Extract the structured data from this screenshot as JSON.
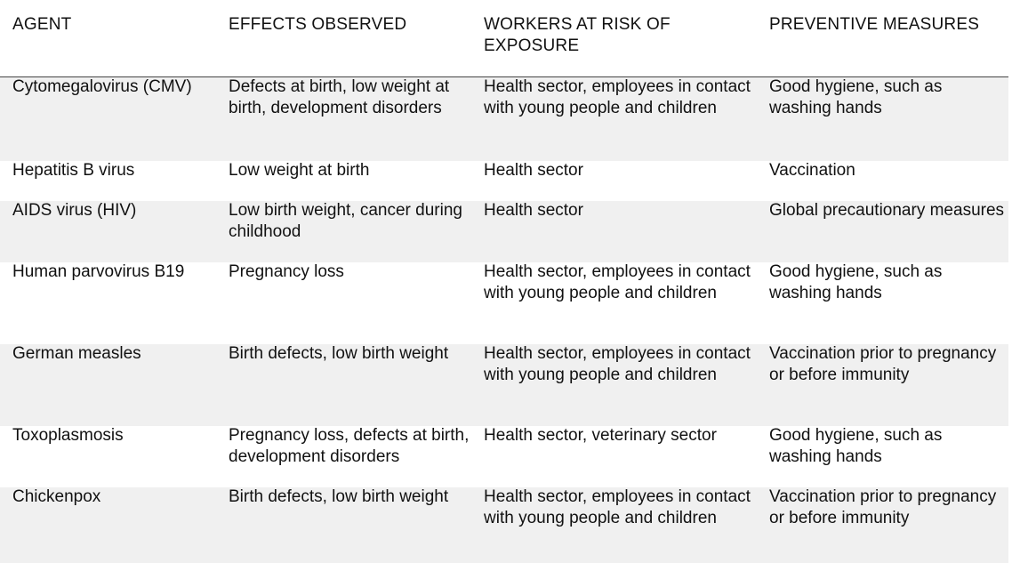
{
  "table": {
    "headers": {
      "agent": "AGENT",
      "effects": "EFFECTS OBSERVED",
      "workers": "WORKERS AT RISK OF EXPOSURE",
      "measures": "PREVENTIVE MEASURES"
    },
    "rows": [
      {
        "agent": "Cytomegalovirus (CMV)",
        "effects": "Defects at birth, low weight at birth, development disorders",
        "workers": "Health sector, employees in contact with young people and children",
        "measures": "Good hygiene, such as washing hands"
      },
      {
        "agent": "Hepatitis B virus",
        "effects": "Low weight at birth",
        "workers": "Health sector",
        "measures": "Vaccination"
      },
      {
        "agent": "AIDS virus (HIV)",
        "effects": "Low birth weight, cancer during childhood",
        "workers": "Health sector",
        "measures": "Global precautionary measures"
      },
      {
        "agent": "Human parvovirus B19",
        "effects": "Pregnancy loss",
        "workers": "Health sector, employees in contact with young people and children",
        "measures": "Good hygiene, such as washing hands"
      },
      {
        "agent": "German measles",
        "effects": "Birth defects, low birth weight",
        "workers": "Health sector, employees in contact with young people and children",
        "measures": "Vaccination prior to pregnancy or before immunity"
      },
      {
        "agent": "Toxoplasmosis",
        "effects": "Pregnancy loss, defects at birth, development disorders",
        "workers": "Health sector, veterinary sector",
        "measures": "Good hygiene, such as washing hands"
      },
      {
        "agent": "Chickenpox",
        "effects": "Birth defects, low birth weight",
        "workers": "Health sector, employees in contact with young people and children",
        "measures": "Vaccination prior to pregnancy or before immunity"
      }
    ]
  }
}
